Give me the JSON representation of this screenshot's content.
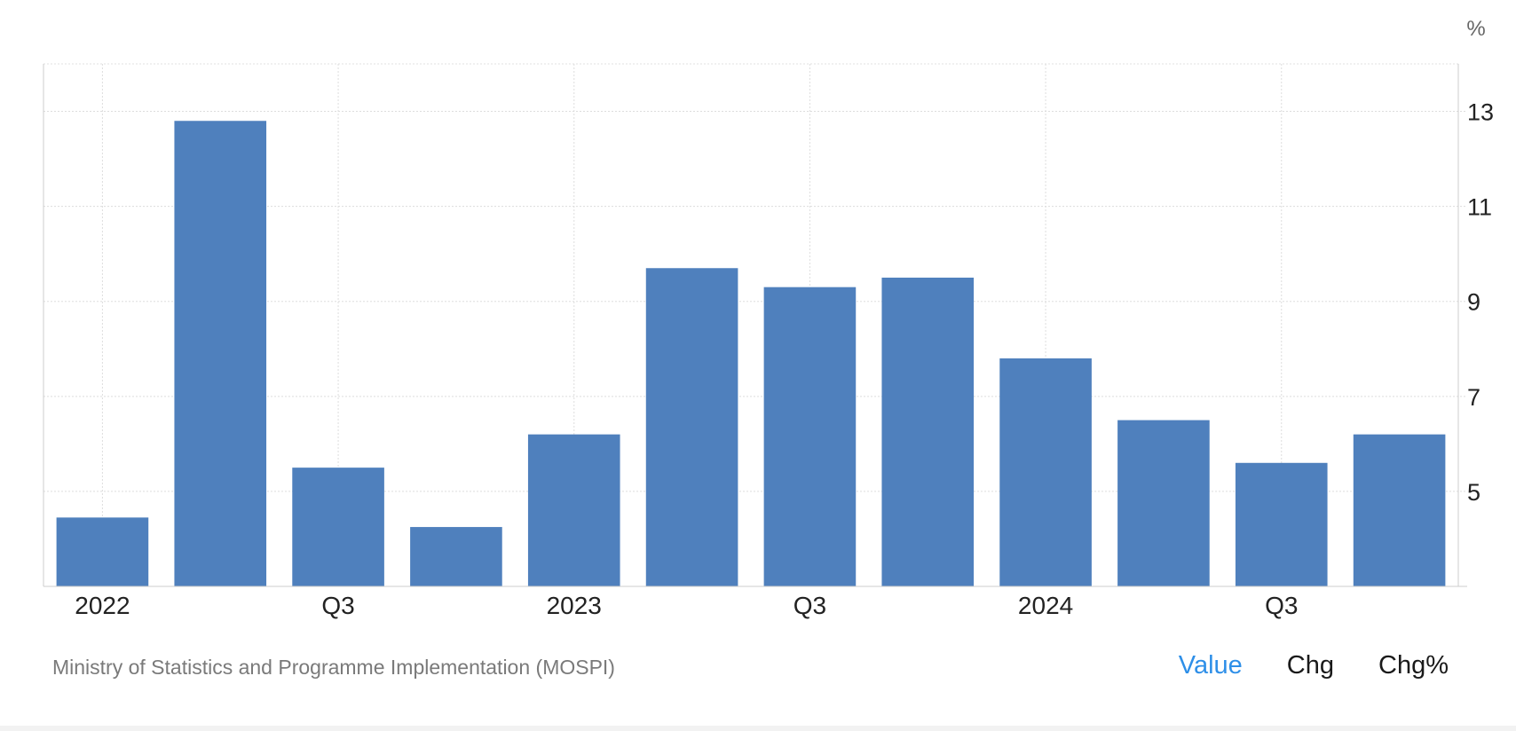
{
  "chart_data": {
    "type": "bar",
    "unit_label": "%",
    "categories": [
      "2022 Q1",
      "2022 Q2",
      "2022 Q3",
      "2022 Q4",
      "2023 Q1",
      "2023 Q2",
      "2023 Q3",
      "2023 Q4",
      "2024 Q1",
      "2024 Q2",
      "2024 Q3",
      "2024 Q4"
    ],
    "values": [
      4.45,
      12.8,
      5.5,
      4.25,
      6.2,
      9.7,
      9.3,
      9.5,
      7.8,
      6.5,
      5.6,
      6.2
    ],
    "x_tick_labels": [
      {
        "index": 0,
        "label": "2022"
      },
      {
        "index": 2,
        "label": "Q3"
      },
      {
        "index": 4,
        "label": "2023"
      },
      {
        "index": 6,
        "label": "Q3"
      },
      {
        "index": 8,
        "label": "2024"
      },
      {
        "index": 10,
        "label": "Q3"
      }
    ],
    "y_ticks": [
      5,
      7,
      9,
      11,
      13
    ],
    "ylim": [
      3,
      14
    ],
    "axis_side": "right",
    "grid": true,
    "bar_color": "#4f80bd"
  },
  "footer": {
    "source": "Ministry of Statistics and Programme Implementation (MOSPI)",
    "tabs": [
      "Value",
      "Chg",
      "Chg%"
    ],
    "active_tab": "Value",
    "active_color": "#2e8fe8"
  }
}
